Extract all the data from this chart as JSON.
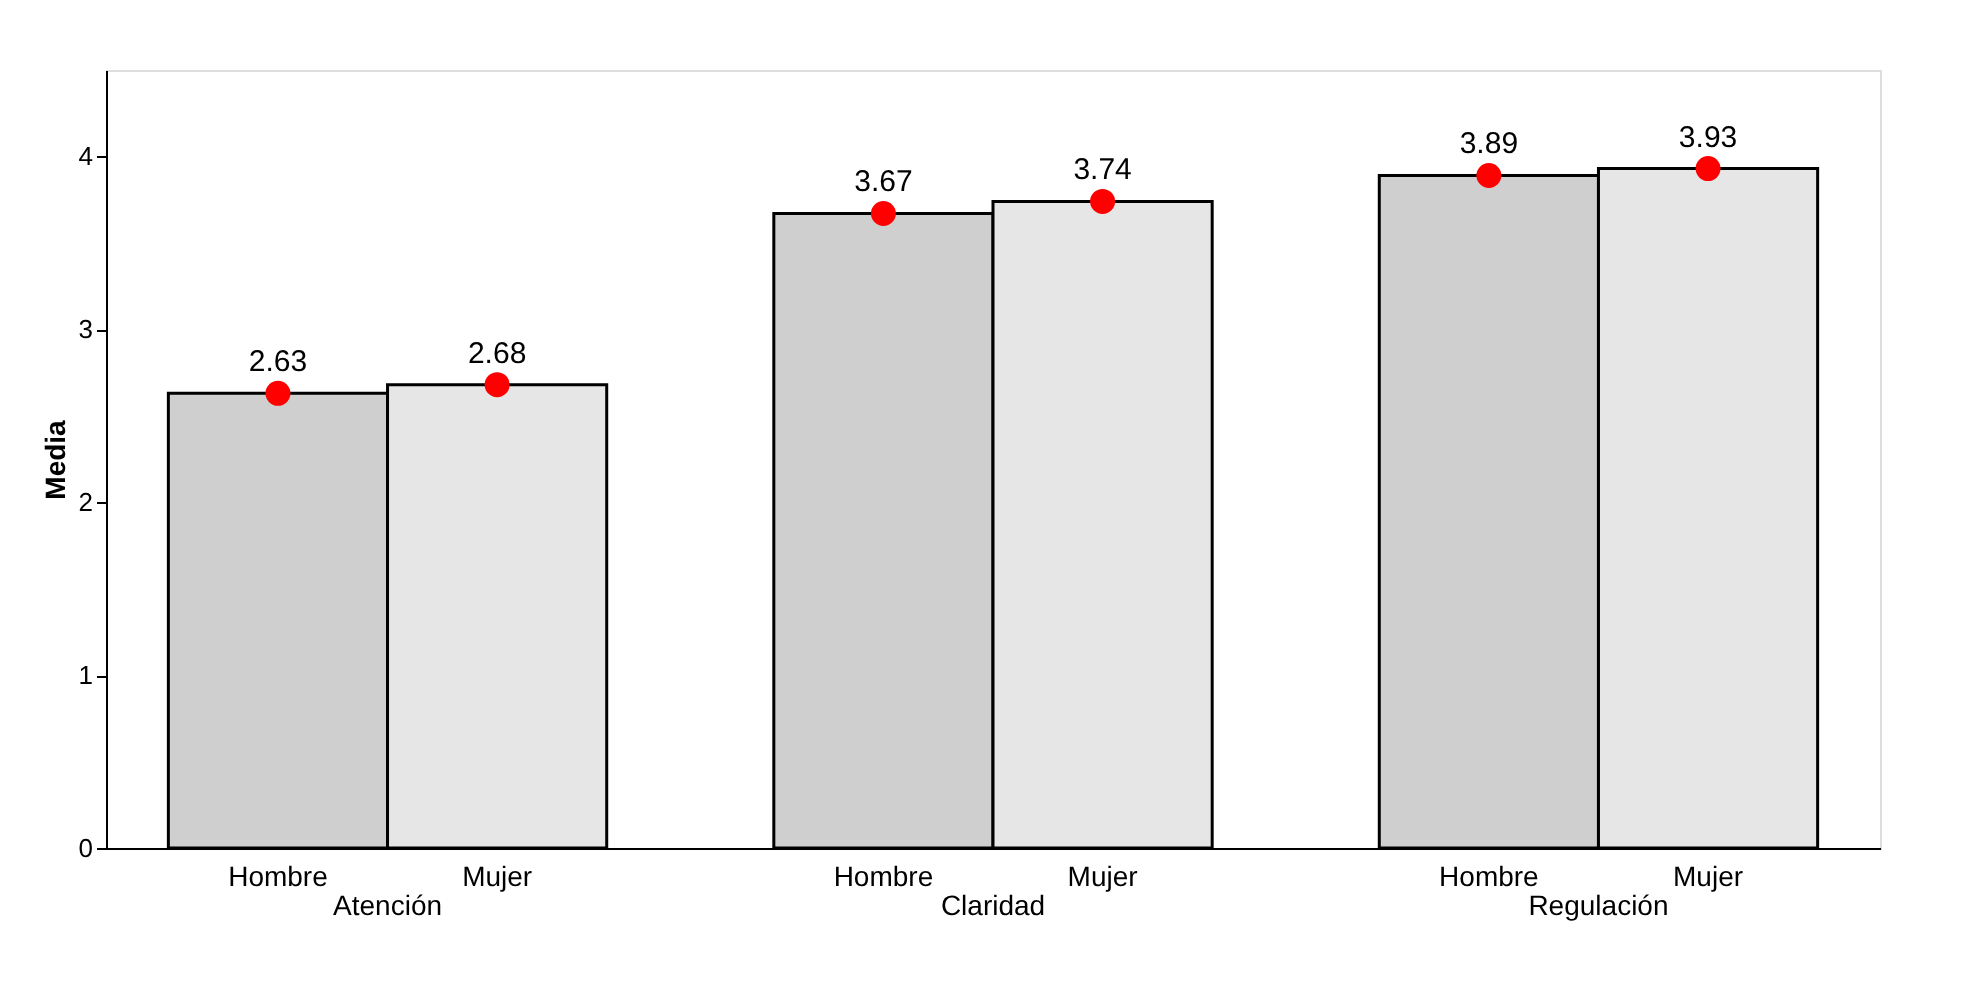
{
  "chart_data": {
    "type": "bar",
    "ylabel": "Media",
    "categories": [
      "Atención",
      "Claridad",
      "Regulación"
    ],
    "series": [
      {
        "name": "Hombre",
        "color": "#cfcfcf",
        "values": [
          2.63,
          3.67,
          3.89
        ]
      },
      {
        "name": "Mujer",
        "color": "#e6e6e6",
        "values": [
          2.68,
          3.74,
          3.93
        ]
      },
      {
        "type": "scatter",
        "color": "#ff0000",
        "values": [
          2.63,
          3.67,
          3.89
        ],
        "value_labels": [
          "2.63",
          "3.67",
          "3.89"
        ]
      },
      {
        "type": "scatter",
        "color": "#ff0000",
        "values": [
          2.68,
          3.74,
          3.93
        ],
        "value_labels": [
          "2.68",
          "3.74",
          "3.93"
        ]
      }
    ],
    "ylim": [
      0,
      4.5
    ],
    "yticks": [
      0,
      1,
      2,
      3,
      4
    ],
    "grid": false,
    "legend": false,
    "marker": "circle"
  }
}
